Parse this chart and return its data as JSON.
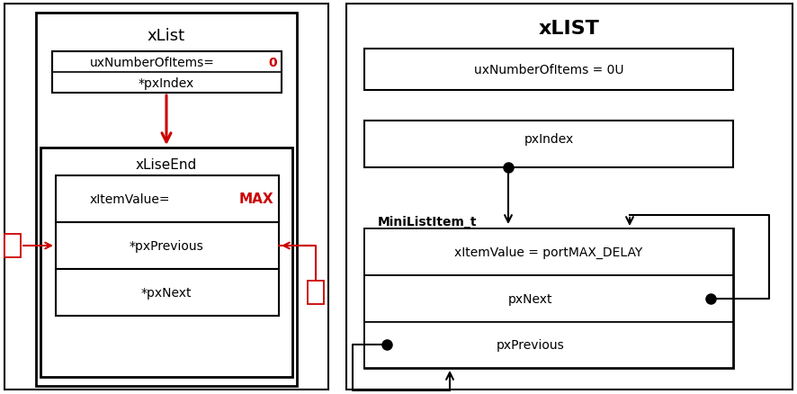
{
  "bg_color": "#ffffff",
  "black": "#000000",
  "red": "#cc0000",
  "left_title": "xList",
  "left_uxNum_text": "uxNumberOfItems=",
  "left_uxNum_val": "0",
  "left_pxIndex_text": "*pxIndex",
  "left_xLiseEnd_label": "xLiseEnd",
  "left_xItemValue_text": "xItemValue=",
  "left_xItemValue_val": "MAX",
  "left_pxPrevious_text": "*pxPrevious",
  "left_pxNext_text": "*pxNext",
  "right_title": "xLIST",
  "right_uxNum_text": "uxNumberOfItems = 0U",
  "right_pxIndex_text": "pxIndex",
  "right_minilist_label": "MiniListItem_t",
  "right_xItemValue_text": "xItemValue = portMAX_DELAY",
  "right_pxNext_text": "pxNext",
  "right_pxPrevious_text": "pxPrevious"
}
